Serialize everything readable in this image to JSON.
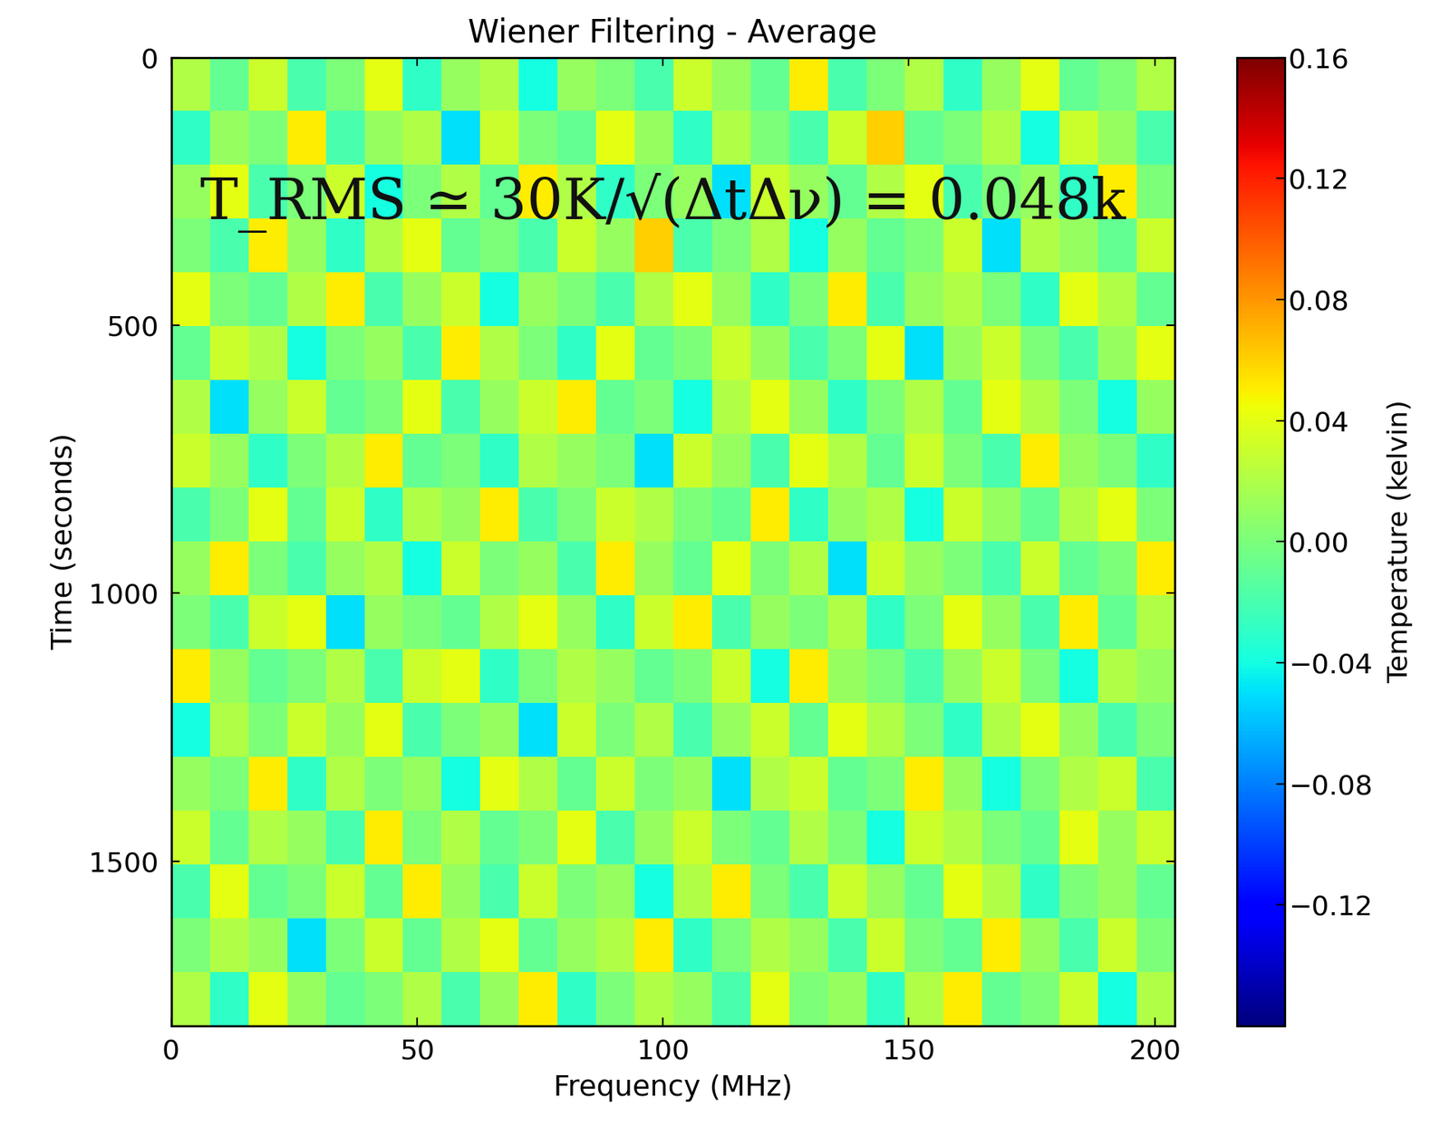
{
  "chart_data": {
    "type": "heatmap",
    "title": "Wiener Filtering - Average",
    "x_label": "Frequency (MHz)",
    "y_label": "Time (seconds)",
    "annotation": "T_RMS ≃ 30K/√(ΔtΔν) = 0.048k",
    "xlim": [
      0,
      204
    ],
    "xticks": [
      0,
      50,
      100,
      150,
      200
    ],
    "ylim": [
      1807,
      0
    ],
    "yticks": [
      0,
      500,
      1000,
      1500
    ],
    "colorbar_label": "Temperature (kelvin)",
    "colorbar_range": [
      -0.16,
      0.16
    ],
    "colorbar_ticks": [
      {
        "value": -0.12,
        "label": "−0.12"
      },
      {
        "value": -0.08,
        "label": "−0.08"
      },
      {
        "value": -0.04,
        "label": "−0.04"
      },
      {
        "value": 0,
        "label": "0.00"
      },
      0.04,
      0.08,
      0.12,
      0.16
    ],
    "cells": [
      [
        0.02,
        -0.01,
        0.03,
        -0.02,
        0.0,
        0.04,
        -0.03,
        0.01,
        0.02,
        -0.04,
        0.01,
        0.0,
        -0.02,
        0.03,
        0.01,
        -0.01,
        0.05,
        -0.02,
        0.0,
        0.02,
        -0.03,
        0.01,
        0.04,
        -0.01,
        0.0,
        0.02
      ],
      [
        -0.03,
        0.01,
        0.0,
        0.05,
        -0.02,
        0.01,
        0.02,
        -0.05,
        0.03,
        0.0,
        -0.01,
        0.04,
        0.01,
        -0.03,
        0.02,
        0.0,
        -0.02,
        0.03,
        0.06,
        -0.01,
        0.0,
        0.02,
        -0.04,
        0.03,
        0.01,
        -0.02
      ],
      [
        0.01,
        0.04,
        -0.02,
        0.0,
        0.03,
        -0.04,
        0.0,
        0.02,
        -0.01,
        0.05,
        0.02,
        -0.03,
        0.0,
        0.01,
        -0.05,
        0.03,
        0.01,
        -0.01,
        0.02,
        0.04,
        -0.02,
        0.0,
        0.01,
        -0.03,
        0.05,
        0.0
      ],
      [
        0.0,
        -0.02,
        0.05,
        0.01,
        -0.03,
        0.02,
        0.04,
        -0.01,
        0.0,
        -0.02,
        0.03,
        0.01,
        0.06,
        -0.02,
        0.0,
        0.02,
        -0.04,
        0.01,
        -0.01,
        0.0,
        0.03,
        -0.05,
        0.02,
        0.01,
        -0.01,
        0.03
      ],
      [
        0.04,
        0.0,
        -0.01,
        0.02,
        0.05,
        -0.02,
        0.01,
        0.03,
        -0.04,
        0.01,
        0.0,
        -0.02,
        0.02,
        0.04,
        0.01,
        -0.03,
        0.0,
        0.05,
        -0.02,
        0.01,
        0.02,
        0.0,
        -0.03,
        0.04,
        0.02,
        -0.01
      ],
      [
        -0.01,
        0.03,
        0.02,
        -0.04,
        0.0,
        0.01,
        -0.02,
        0.05,
        0.02,
        0.0,
        -0.03,
        0.04,
        -0.01,
        0.0,
        0.03,
        0.01,
        -0.02,
        0.0,
        0.04,
        -0.05,
        0.01,
        0.03,
        0.0,
        -0.02,
        0.01,
        0.04
      ],
      [
        0.02,
        -0.05,
        0.01,
        0.03,
        -0.01,
        0.0,
        0.04,
        -0.02,
        0.01,
        0.03,
        0.05,
        -0.01,
        0.0,
        -0.04,
        0.02,
        0.04,
        0.01,
        -0.03,
        0.0,
        0.02,
        -0.01,
        0.04,
        0.02,
        0.0,
        -0.04,
        0.01
      ],
      [
        0.03,
        0.01,
        -0.03,
        0.0,
        0.02,
        0.05,
        -0.01,
        0.0,
        -0.03,
        0.02,
        0.01,
        0.0,
        -0.05,
        0.03,
        0.01,
        -0.02,
        0.04,
        0.02,
        -0.01,
        0.03,
        0.0,
        -0.02,
        0.05,
        0.01,
        0.0,
        -0.03
      ],
      [
        -0.02,
        0.0,
        0.04,
        -0.01,
        0.03,
        -0.03,
        0.02,
        0.01,
        0.05,
        -0.02,
        0.0,
        0.03,
        0.02,
        0.0,
        -0.01,
        0.05,
        -0.03,
        0.01,
        0.02,
        -0.04,
        0.03,
        0.01,
        -0.01,
        0.02,
        0.04,
        0.0
      ],
      [
        0.01,
        0.05,
        0.0,
        -0.02,
        0.01,
        0.02,
        -0.04,
        0.03,
        0.0,
        0.01,
        -0.02,
        0.05,
        0.01,
        -0.01,
        0.04,
        0.0,
        0.02,
        -0.05,
        0.03,
        0.01,
        0.0,
        -0.02,
        0.03,
        -0.01,
        0.0,
        0.05
      ],
      [
        0.0,
        -0.02,
        0.03,
        0.04,
        -0.05,
        0.01,
        0.0,
        -0.01,
        0.02,
        0.04,
        0.01,
        -0.03,
        0.03,
        0.05,
        -0.02,
        0.01,
        0.0,
        0.02,
        -0.03,
        0.0,
        0.04,
        0.01,
        -0.02,
        0.05,
        -0.01,
        0.02
      ],
      [
        0.05,
        0.01,
        -0.01,
        0.0,
        0.02,
        -0.02,
        0.03,
        0.04,
        -0.03,
        0.0,
        0.02,
        0.01,
        -0.01,
        0.0,
        0.03,
        -0.04,
        0.05,
        0.01,
        0.0,
        -0.02,
        0.01,
        0.03,
        0.0,
        -0.04,
        0.02,
        0.01
      ],
      [
        -0.04,
        0.02,
        0.0,
        0.03,
        0.01,
        0.04,
        -0.02,
        0.0,
        0.01,
        -0.05,
        0.03,
        0.0,
        0.02,
        -0.02,
        0.01,
        0.03,
        -0.01,
        0.04,
        0.02,
        0.0,
        -0.03,
        0.02,
        0.04,
        0.01,
        -0.02,
        0.0
      ],
      [
        0.01,
        0.0,
        0.05,
        -0.03,
        0.02,
        0.0,
        0.01,
        -0.04,
        0.04,
        0.02,
        -0.01,
        0.03,
        0.0,
        0.01,
        -0.05,
        0.02,
        0.03,
        -0.01,
        0.0,
        0.05,
        0.01,
        -0.04,
        0.0,
        0.02,
        0.03,
        -0.02
      ],
      [
        0.03,
        -0.01,
        0.02,
        0.01,
        -0.02,
        0.05,
        0.0,
        0.02,
        -0.01,
        0.0,
        0.04,
        -0.02,
        0.01,
        0.03,
        0.0,
        -0.01,
        0.02,
        0.0,
        -0.04,
        0.03,
        0.02,
        0.0,
        -0.01,
        0.04,
        0.01,
        0.03
      ],
      [
        -0.02,
        0.04,
        -0.01,
        0.0,
        0.03,
        -0.01,
        0.05,
        0.01,
        -0.02,
        0.03,
        0.0,
        0.01,
        -0.04,
        0.02,
        0.05,
        0.0,
        -0.02,
        0.03,
        0.01,
        -0.01,
        0.04,
        0.02,
        -0.03,
        0.0,
        0.01,
        -0.01
      ],
      [
        0.0,
        0.02,
        0.01,
        -0.05,
        0.0,
        0.03,
        -0.01,
        0.02,
        0.04,
        -0.01,
        0.01,
        0.02,
        0.05,
        -0.03,
        0.0,
        0.02,
        0.01,
        -0.02,
        0.03,
        0.0,
        -0.01,
        0.05,
        0.01,
        -0.02,
        0.03,
        0.0
      ],
      [
        0.02,
        -0.03,
        0.04,
        0.01,
        -0.01,
        0.0,
        0.02,
        -0.02,
        0.01,
        0.05,
        -0.03,
        0.0,
        0.02,
        0.01,
        -0.02,
        0.04,
        0.0,
        0.01,
        -0.03,
        0.02,
        0.05,
        -0.01,
        0.0,
        0.03,
        -0.04,
        0.02
      ]
    ]
  }
}
